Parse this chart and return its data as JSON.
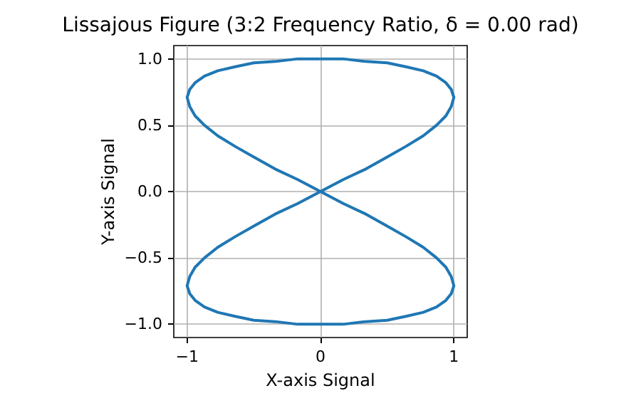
{
  "chart_data": {
    "type": "line",
    "title": "Lissajous Figure (3:2 Frequency Ratio, δ = 0.00 rad)",
    "xlabel": "X-axis Signal",
    "ylabel": "Y-axis Signal",
    "series": [
      {
        "color": "#1f77b4",
        "x": [
          0,
          0.17,
          0.34,
          0.5,
          0.64,
          0.77,
          0.87,
          0.94,
          0.98,
          1,
          0.98,
          0.94,
          0.87,
          0.77,
          0.64,
          0.5,
          0.34,
          0.17,
          0,
          -0.17,
          -0.34,
          -0.5,
          -0.64,
          -0.77,
          -0.87,
          -0.94,
          -0.98,
          -1,
          -0.98,
          -0.94,
          -0.87,
          -0.77,
          -0.64,
          -0.5,
          -0.34,
          -0.17,
          0,
          0.17,
          0.34,
          0.5,
          0.64,
          0.77,
          0.87,
          0.94,
          0.98,
          1,
          0.98,
          0.94,
          0.87,
          0.77,
          0.64,
          0.5,
          0.34,
          0.17,
          0,
          -0.17,
          -0.34,
          -0.5,
          -0.64,
          -0.77,
          -0.87,
          -0.94,
          -0.98,
          -1,
          -0.98,
          -0.94,
          -0.87,
          -0.77,
          -0.64,
          -0.5,
          -0.34,
          -0.17,
          -0.09,
          -0.01
        ],
        "values": [
          1,
          1,
          0.98,
          0.97,
          0.94,
          0.91,
          0.87,
          0.82,
          0.77,
          0.71,
          0.64,
          0.57,
          0.5,
          0.42,
          0.34,
          0.26,
          0.17,
          0.09,
          0,
          -0.09,
          -0.17,
          -0.26,
          -0.34,
          -0.42,
          -0.5,
          -0.57,
          -0.64,
          -0.71,
          -0.77,
          -0.82,
          -0.87,
          -0.91,
          -0.94,
          -0.97,
          -0.98,
          -1,
          -1,
          -1,
          -0.98,
          -0.97,
          -0.94,
          -0.91,
          -0.87,
          -0.82,
          -0.77,
          -0.71,
          -0.64,
          -0.57,
          -0.5,
          -0.42,
          -0.34,
          -0.26,
          -0.17,
          -0.09,
          0,
          0.09,
          0.17,
          0.26,
          0.34,
          0.42,
          0.5,
          0.57,
          0.64,
          0.71,
          0.77,
          0.82,
          0.87,
          0.91,
          0.94,
          0.97,
          0.98,
          1,
          1,
          1
        ]
      }
    ],
    "xlim": [
      -1.1,
      1.1
    ],
    "ylim": [
      -1.1,
      1.1
    ],
    "xticks": [
      {
        "value": -1,
        "label": "−1"
      },
      0,
      1
    ],
    "yticks": [
      {
        "value": -1,
        "label": "−1.0"
      },
      {
        "value": -0.5,
        "label": "−0.5"
      },
      {
        "value": 0,
        "label": "0.0"
      },
      0.5,
      {
        "value": 1,
        "label": "1.0"
      }
    ],
    "grid": true,
    "marker": "none",
    "line_style": "solid"
  }
}
